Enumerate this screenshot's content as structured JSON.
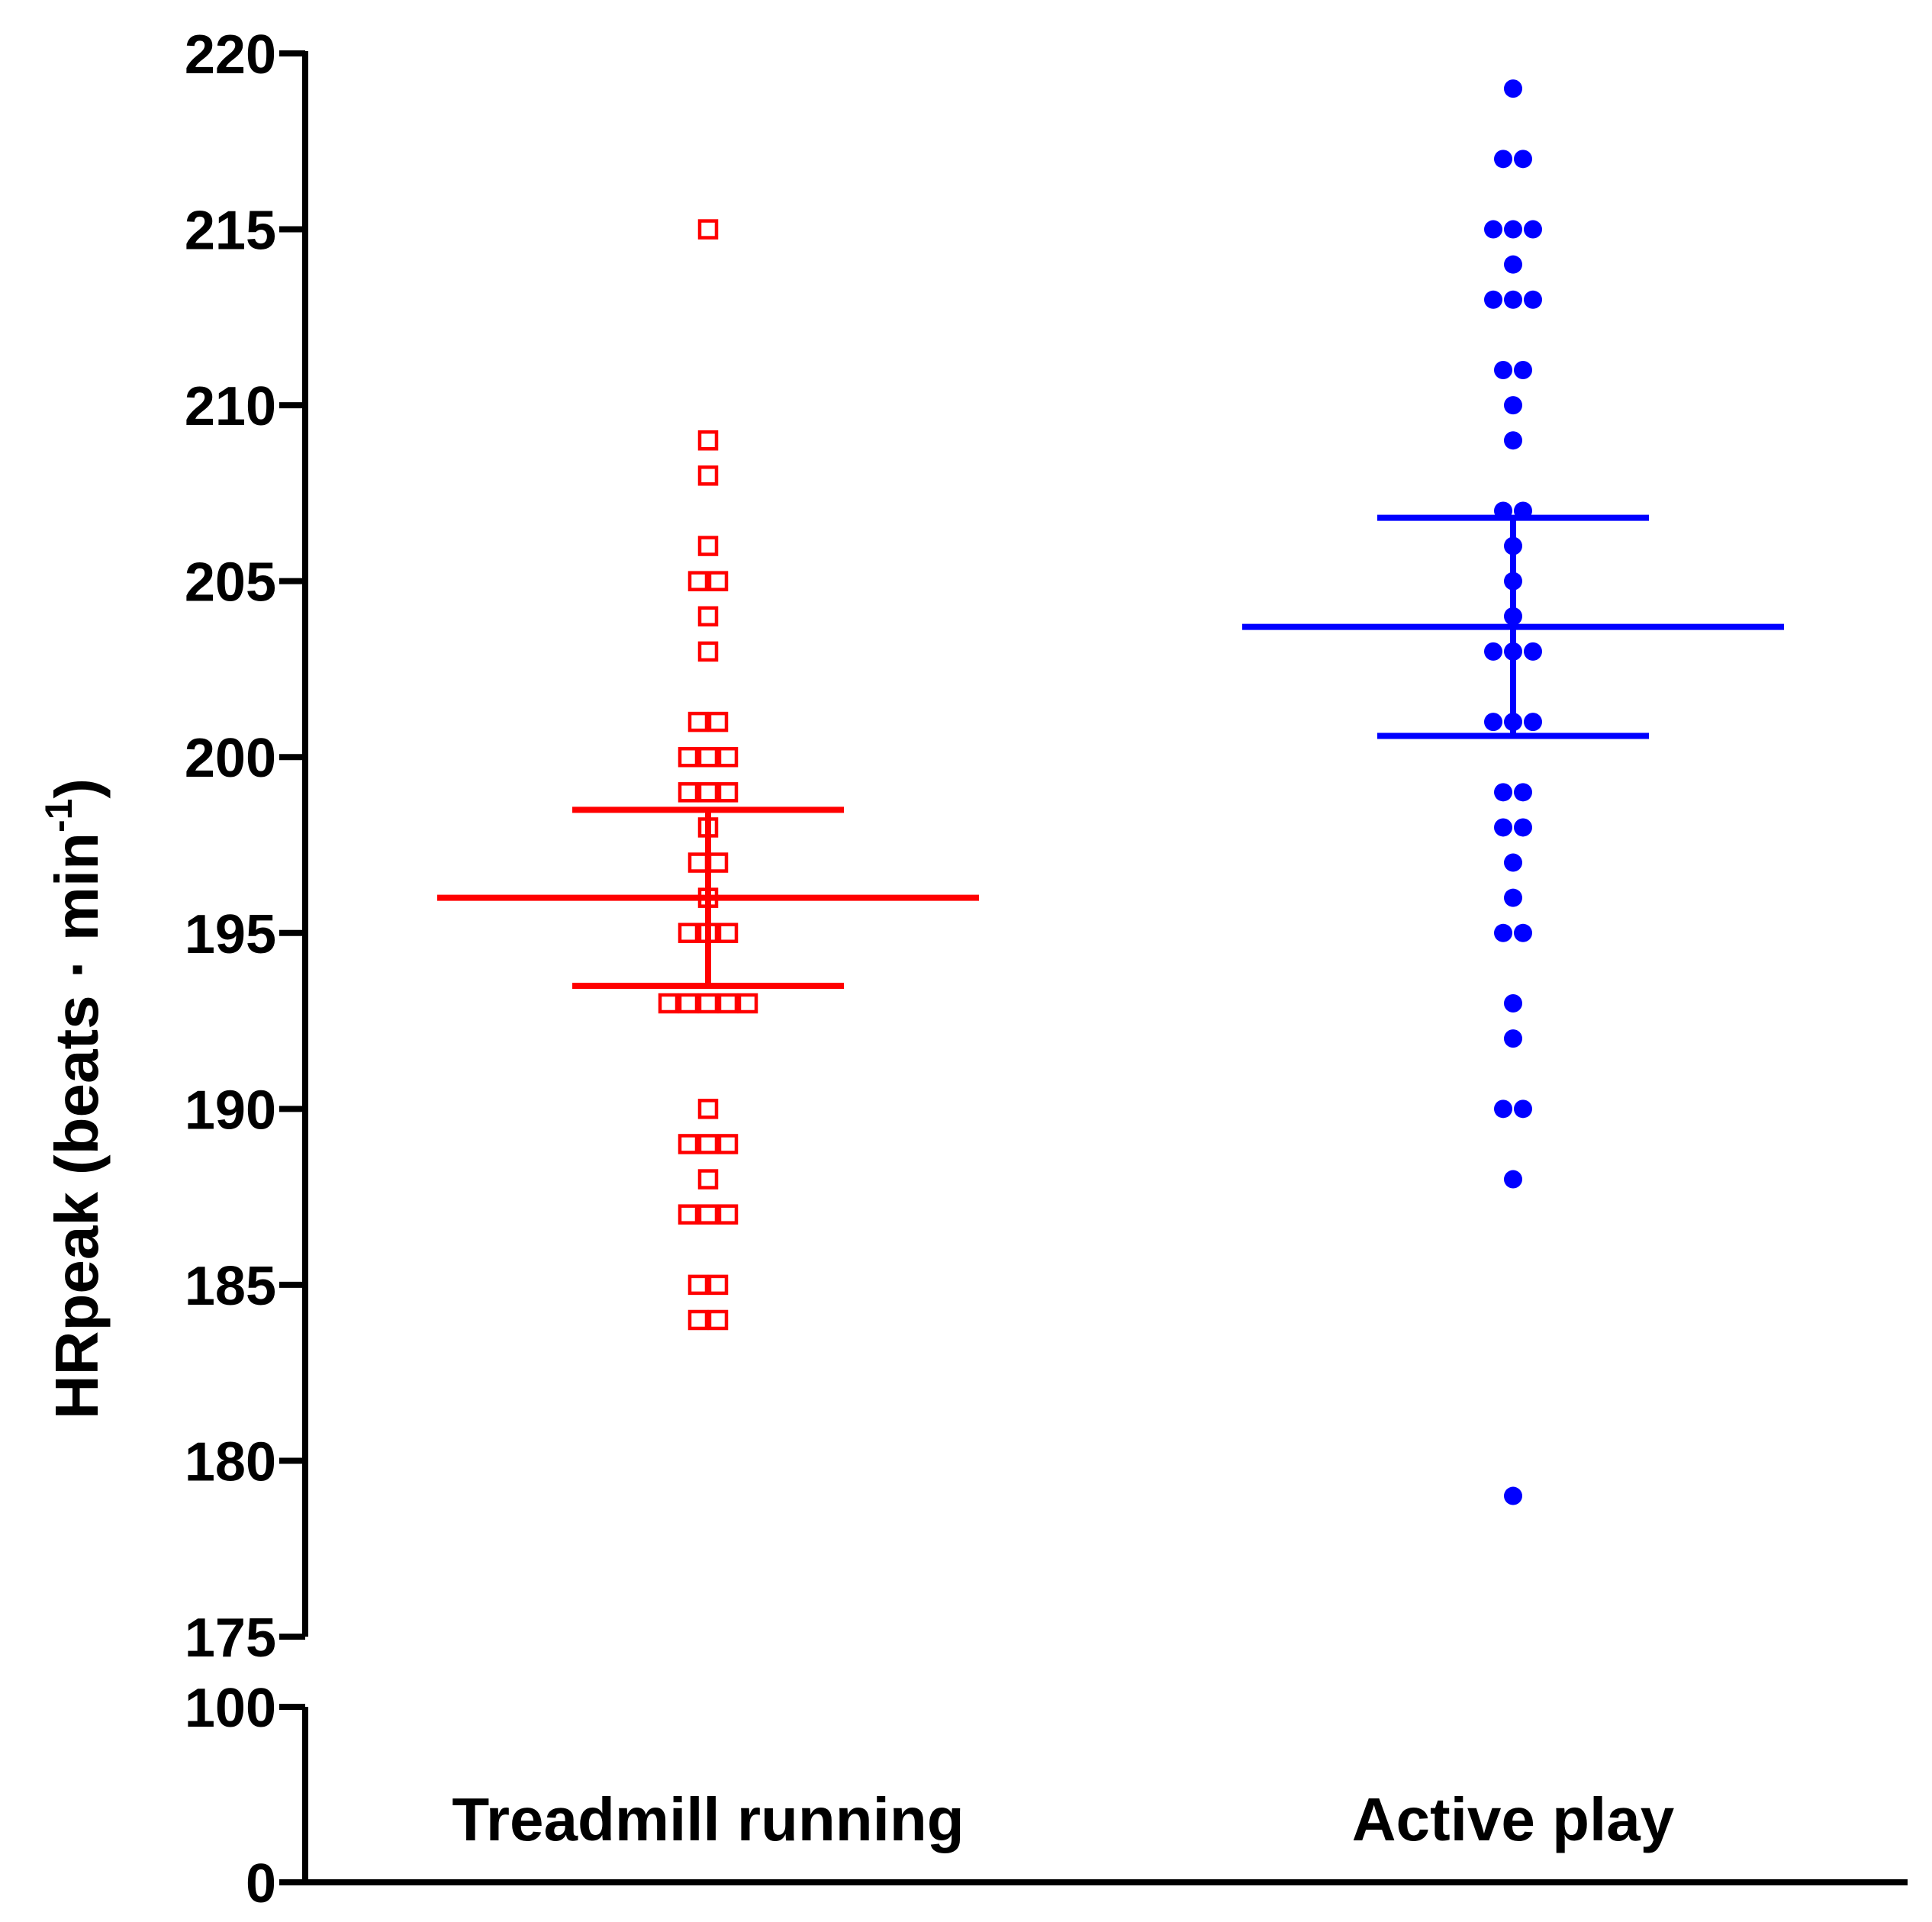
{
  "chart_data": {
    "type": "scatter",
    "title": "",
    "xlabel": "",
    "ylabel": {
      "main": "HRpeak (beats · min",
      "superscript": "-1",
      "close": ")"
    },
    "categories": [
      "Treadmill running",
      "Active play"
    ],
    "y_axis": {
      "lower_segment": {
        "range": [
          0,
          100
        ],
        "ticks": [
          "0",
          "100"
        ]
      },
      "upper_segment": {
        "range": [
          175,
          220
        ],
        "ticks": [
          "175",
          "180",
          "185",
          "190",
          "195",
          "200",
          "205",
          "210",
          "215",
          "220"
        ]
      },
      "break_between": [
        100,
        175
      ]
    },
    "series": [
      {
        "name": "Treadmill running",
        "color": "#ff0000",
        "marker": "open-square",
        "values": [
          215,
          209,
          208,
          206,
          205,
          205,
          204,
          203,
          201,
          201,
          200,
          200,
          200,
          199,
          199,
          199,
          198,
          197,
          197,
          196,
          195,
          195,
          195,
          193,
          193,
          193,
          193,
          193,
          190,
          189,
          189,
          189,
          188,
          187,
          187,
          187,
          185,
          185,
          184,
          184
        ],
        "mean": 196.0,
        "error_low": 193.5,
        "error_high": 198.5
      },
      {
        "name": "Active play",
        "color": "#0000ff",
        "marker": "filled-circle",
        "values": [
          219,
          217,
          217,
          215,
          215,
          215,
          214,
          213,
          213,
          213,
          211,
          211,
          210,
          209,
          207,
          207,
          206,
          205,
          204,
          203,
          203,
          203,
          201,
          201,
          201,
          199,
          199,
          198,
          198,
          197,
          196,
          195,
          195,
          193,
          192,
          190,
          190,
          188,
          179
        ],
        "mean": 203.7,
        "error_low": 200.6,
        "error_high": 206.8
      }
    ],
    "grid": false,
    "legend": "none"
  }
}
